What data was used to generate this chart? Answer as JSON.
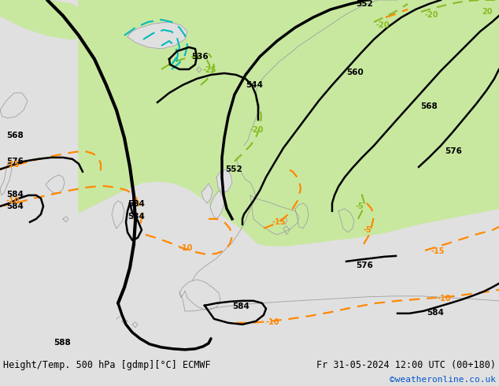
{
  "title_left": "Height/Temp. 500 hPa [gdmp][°C] ECMWF",
  "title_right": "Fr 31-05-2024 12:00 UTC (00+180)",
  "credit": "©weatheronline.co.uk",
  "bg_color": "#e0e0e0",
  "green_color": "#c8e8a0",
  "coast_color": "#a0a0a0",
  "line_color_black": "#000000",
  "line_color_orange": "#ff8800",
  "line_color_green": "#88bb22",
  "line_color_cyan": "#00bbbb",
  "bottom_bar_color": "#c8c8c8",
  "fig_width": 6.34,
  "fig_height": 4.9
}
